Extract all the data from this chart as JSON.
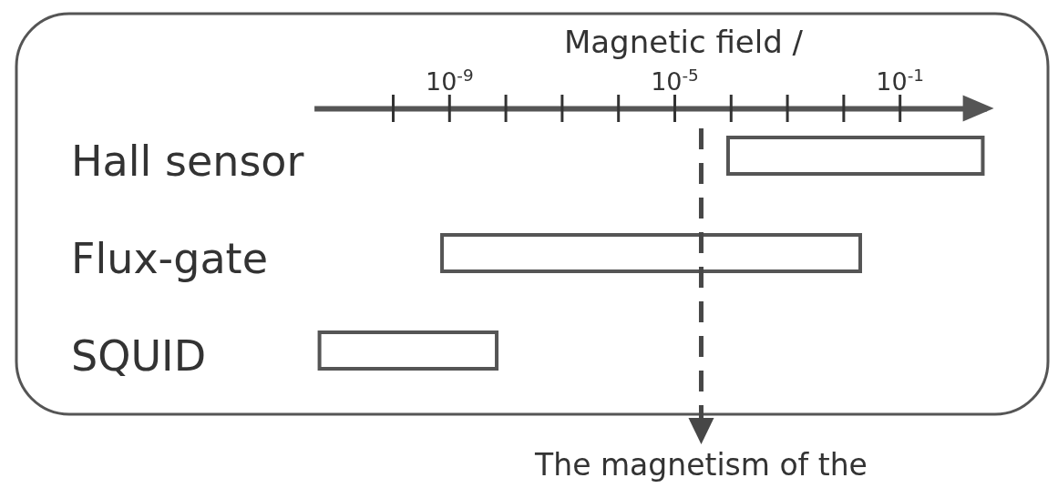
{
  "chart_data": {
    "type": "bar",
    "orientation": "horizontal",
    "xlabel": "Magnetic field /",
    "categories": [
      "Hall sensor",
      "Flux-gate",
      "SQUID"
    ],
    "values": [
      3,
      0.02,
      7e-09
    ],
    "base": [
      9e-05,
      7.5e-10,
      5e-12
    ],
    "color": "#ffffff",
    "log": "x",
    "xlim": [
      4e-12,
      3.5
    ],
    "xticks": [
      {
        "value": 1e-10,
        "label": null
      },
      {
        "value": 1e-09,
        "label": "10$^{-9}$"
      },
      {
        "value": 1e-08,
        "label": null
      },
      {
        "value": 1e-07,
        "label": null
      },
      {
        "value": 1e-06,
        "label": null
      },
      {
        "value": 1e-05,
        "label": "10$^{-5}$"
      },
      {
        "value": 0.0001,
        "label": null
      },
      {
        "value": 0.001,
        "label": null
      },
      {
        "value": 0.01,
        "label": null
      },
      {
        "value": 0.1,
        "label": "10$^{-1}$"
      }
    ],
    "ref_lines": [
      {
        "axis": "x",
        "value": 3e-05,
        "label": "The magnetism of the",
        "line_style": "dashed",
        "color": "#474747"
      }
    ]
  }
}
